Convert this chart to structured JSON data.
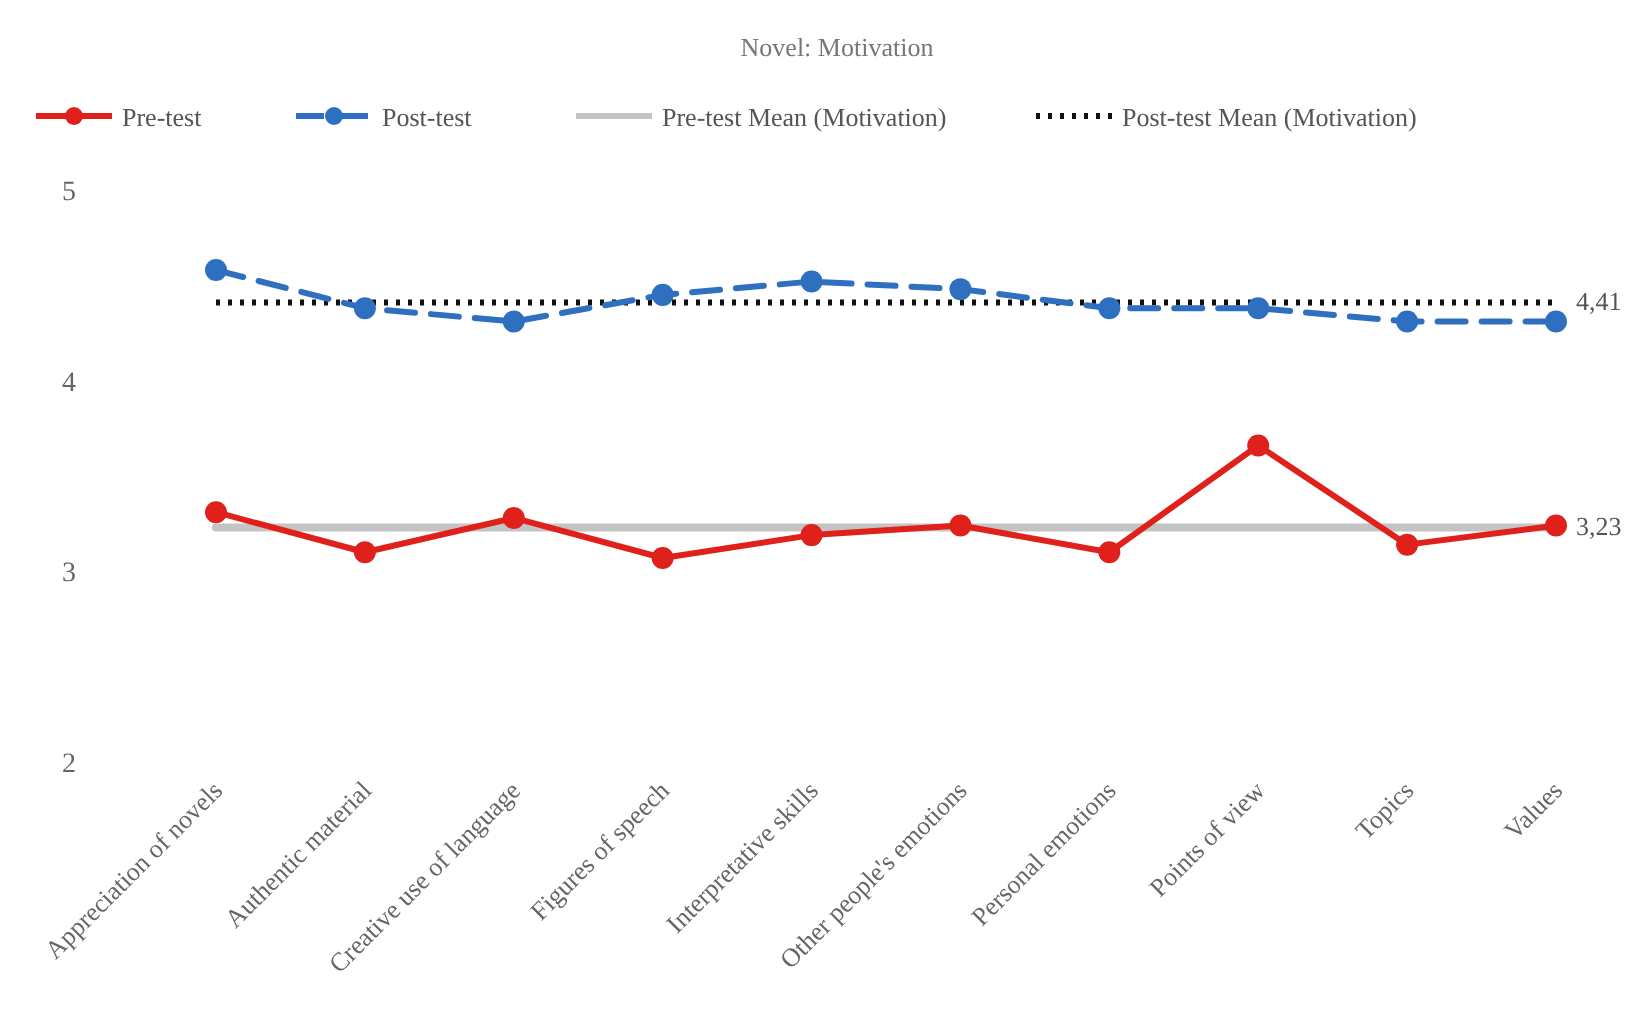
{
  "chart_data": {
    "type": "line",
    "title": "Novel: Motivation",
    "categories": [
      "Appreciation of novels",
      "Authentic material",
      "Creative use of language",
      "Figures of speech",
      "Interpretative skills",
      "Other people's emotions",
      "Personal emotions",
      "Points of view",
      "Topics",
      "Values"
    ],
    "series": [
      {
        "name": "Pre-test",
        "color": "#e0201b",
        "line_style": "solid",
        "marker": "circle",
        "values": [
          3.31,
          3.1,
          3.28,
          3.07,
          3.19,
          3.24,
          3.1,
          3.66,
          3.14,
          3.24
        ]
      },
      {
        "name": "Post-test",
        "color": "#2e6fc0",
        "line_style": "dashed",
        "marker": "circle",
        "values": [
          4.58,
          4.38,
          4.31,
          4.45,
          4.52,
          4.48,
          4.38,
          4.38,
          4.31,
          4.31
        ]
      },
      {
        "name": "Pre-test Mean (Motivation)",
        "color": "#c4c4c4",
        "line_style": "solid",
        "marker": "none",
        "values": [
          3.23,
          3.23,
          3.23,
          3.23,
          3.23,
          3.23,
          3.23,
          3.23,
          3.23,
          3.23
        ],
        "value_labels": [
          null,
          null,
          null,
          null,
          null,
          null,
          null,
          null,
          null,
          "3,23"
        ]
      },
      {
        "name": "Post-test Mean (Motivation)",
        "color": "#111111",
        "line_style": "dotted",
        "marker": "none",
        "values": [
          4.41,
          4.41,
          4.41,
          4.41,
          4.41,
          4.41,
          4.41,
          4.41,
          4.41,
          4.41
        ],
        "value_labels": [
          null,
          null,
          null,
          null,
          null,
          null,
          null,
          null,
          null,
          "4,41"
        ]
      }
    ],
    "ylim": [
      2,
      5
    ],
    "yticks": [
      2,
      3,
      4,
      5
    ],
    "grid": false,
    "legend": "top"
  }
}
